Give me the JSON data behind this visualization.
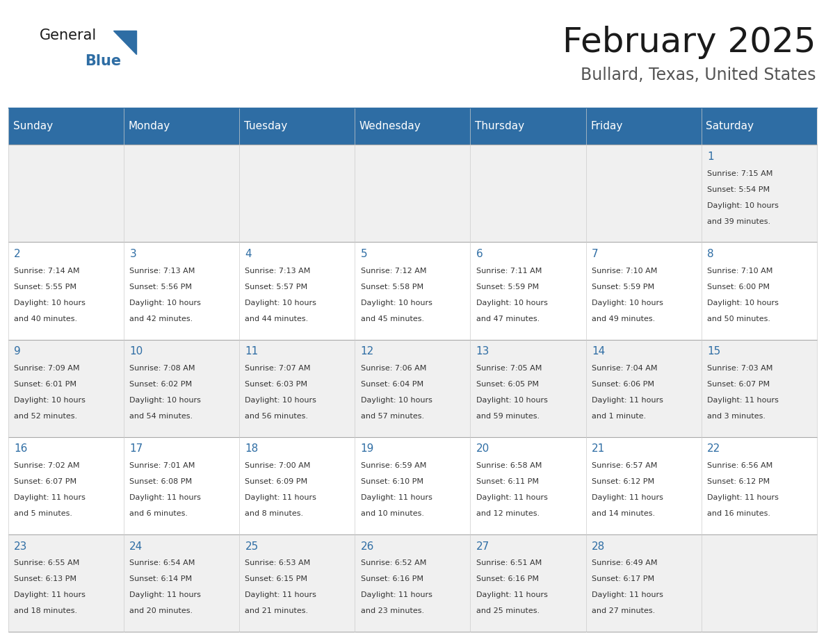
{
  "title": "February 2025",
  "subtitle": "Bullard, Texas, United States",
  "header_bg_color": "#2E6DA4",
  "header_text_color": "#FFFFFF",
  "cell_bg_color_odd": "#F0F0F0",
  "cell_bg_color_even": "#FFFFFF",
  "cell_text_color": "#333333",
  "day_number_color": "#2E6DA4",
  "border_color": "#AAAAAA",
  "days_of_week": [
    "Sunday",
    "Monday",
    "Tuesday",
    "Wednesday",
    "Thursday",
    "Friday",
    "Saturday"
  ],
  "logo_general_color": "#1a1a1a",
  "logo_blue_color": "#2E6DA4",
  "calendar_data": [
    [
      null,
      null,
      null,
      null,
      null,
      null,
      {
        "day": 1,
        "sunrise": "7:15 AM",
        "sunset": "5:54 PM",
        "daylight": "10 hours and 39 minutes."
      }
    ],
    [
      {
        "day": 2,
        "sunrise": "7:14 AM",
        "sunset": "5:55 PM",
        "daylight": "10 hours and 40 minutes."
      },
      {
        "day": 3,
        "sunrise": "7:13 AM",
        "sunset": "5:56 PM",
        "daylight": "10 hours and 42 minutes."
      },
      {
        "day": 4,
        "sunrise": "7:13 AM",
        "sunset": "5:57 PM",
        "daylight": "10 hours and 44 minutes."
      },
      {
        "day": 5,
        "sunrise": "7:12 AM",
        "sunset": "5:58 PM",
        "daylight": "10 hours and 45 minutes."
      },
      {
        "day": 6,
        "sunrise": "7:11 AM",
        "sunset": "5:59 PM",
        "daylight": "10 hours and 47 minutes."
      },
      {
        "day": 7,
        "sunrise": "7:10 AM",
        "sunset": "5:59 PM",
        "daylight": "10 hours and 49 minutes."
      },
      {
        "day": 8,
        "sunrise": "7:10 AM",
        "sunset": "6:00 PM",
        "daylight": "10 hours and 50 minutes."
      }
    ],
    [
      {
        "day": 9,
        "sunrise": "7:09 AM",
        "sunset": "6:01 PM",
        "daylight": "10 hours and 52 minutes."
      },
      {
        "day": 10,
        "sunrise": "7:08 AM",
        "sunset": "6:02 PM",
        "daylight": "10 hours and 54 minutes."
      },
      {
        "day": 11,
        "sunrise": "7:07 AM",
        "sunset": "6:03 PM",
        "daylight": "10 hours and 56 minutes."
      },
      {
        "day": 12,
        "sunrise": "7:06 AM",
        "sunset": "6:04 PM",
        "daylight": "10 hours and 57 minutes."
      },
      {
        "day": 13,
        "sunrise": "7:05 AM",
        "sunset": "6:05 PM",
        "daylight": "10 hours and 59 minutes."
      },
      {
        "day": 14,
        "sunrise": "7:04 AM",
        "sunset": "6:06 PM",
        "daylight": "11 hours and 1 minute."
      },
      {
        "day": 15,
        "sunrise": "7:03 AM",
        "sunset": "6:07 PM",
        "daylight": "11 hours and 3 minutes."
      }
    ],
    [
      {
        "day": 16,
        "sunrise": "7:02 AM",
        "sunset": "6:07 PM",
        "daylight": "11 hours and 5 minutes."
      },
      {
        "day": 17,
        "sunrise": "7:01 AM",
        "sunset": "6:08 PM",
        "daylight": "11 hours and 6 minutes."
      },
      {
        "day": 18,
        "sunrise": "7:00 AM",
        "sunset": "6:09 PM",
        "daylight": "11 hours and 8 minutes."
      },
      {
        "day": 19,
        "sunrise": "6:59 AM",
        "sunset": "6:10 PM",
        "daylight": "11 hours and 10 minutes."
      },
      {
        "day": 20,
        "sunrise": "6:58 AM",
        "sunset": "6:11 PM",
        "daylight": "11 hours and 12 minutes."
      },
      {
        "day": 21,
        "sunrise": "6:57 AM",
        "sunset": "6:12 PM",
        "daylight": "11 hours and 14 minutes."
      },
      {
        "day": 22,
        "sunrise": "6:56 AM",
        "sunset": "6:12 PM",
        "daylight": "11 hours and 16 minutes."
      }
    ],
    [
      {
        "day": 23,
        "sunrise": "6:55 AM",
        "sunset": "6:13 PM",
        "daylight": "11 hours and 18 minutes."
      },
      {
        "day": 24,
        "sunrise": "6:54 AM",
        "sunset": "6:14 PM",
        "daylight": "11 hours and 20 minutes."
      },
      {
        "day": 25,
        "sunrise": "6:53 AM",
        "sunset": "6:15 PM",
        "daylight": "11 hours and 21 minutes."
      },
      {
        "day": 26,
        "sunrise": "6:52 AM",
        "sunset": "6:16 PM",
        "daylight": "11 hours and 23 minutes."
      },
      {
        "day": 27,
        "sunrise": "6:51 AM",
        "sunset": "6:16 PM",
        "daylight": "11 hours and 25 minutes."
      },
      {
        "day": 28,
        "sunrise": "6:49 AM",
        "sunset": "6:17 PM",
        "daylight": "11 hours and 27 minutes."
      },
      null
    ]
  ]
}
